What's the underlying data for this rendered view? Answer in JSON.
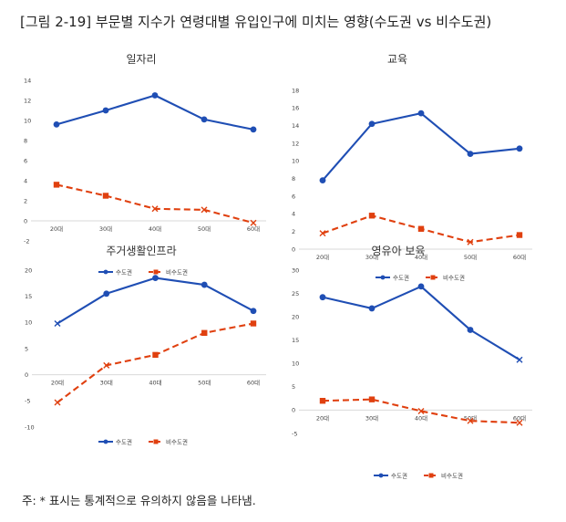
{
  "figure": {
    "title": "[그림 2-19] 부문별 지수가 연령대별 유입인구에 미치는 영향(수도권 vs 비수도권)",
    "footnote": "주: * 표시는 통계적으로 유의하지 않음을 나타냄."
  },
  "colors": {
    "capital": "#1f4eb4",
    "non_capital": "#e0400f"
  },
  "chart_data": [
    {
      "type": "line",
      "title": "일자리",
      "categories": [
        "20대",
        "30대",
        "40대",
        "50대",
        "60대"
      ],
      "ylim": [
        -2,
        14
      ],
      "yticks": [
        -2,
        0,
        2,
        4,
        6,
        8,
        10,
        12,
        14
      ],
      "series": [
        {
          "name": "수도권",
          "values": [
            9.6,
            11.0,
            12.5,
            10.1,
            9.1
          ],
          "not_significant": [
            false,
            false,
            false,
            false,
            false
          ]
        },
        {
          "name": "비수도권",
          "values": [
            3.6,
            2.5,
            1.2,
            1.1,
            -0.2
          ],
          "not_significant": [
            false,
            false,
            true,
            true,
            true
          ]
        }
      ],
      "legend": "bottom"
    },
    {
      "type": "line",
      "title": "교육",
      "categories": [
        "20대",
        "30대",
        "40대",
        "50대",
        "60대"
      ],
      "ylim": [
        0,
        18
      ],
      "yticks": [
        0,
        2,
        4,
        6,
        8,
        10,
        12,
        14,
        16,
        18
      ],
      "series": [
        {
          "name": "수도권",
          "values": [
            7.8,
            14.2,
            15.4,
            10.8,
            11.4
          ],
          "not_significant": [
            false,
            false,
            false,
            false,
            false
          ]
        },
        {
          "name": "비수도권",
          "values": [
            1.8,
            3.8,
            2.3,
            0.8,
            1.6
          ],
          "not_significant": [
            true,
            false,
            false,
            true,
            false
          ]
        }
      ],
      "legend": "bottom"
    },
    {
      "type": "line",
      "title": "주거생활인프라",
      "categories": [
        "20대",
        "30대",
        "40대",
        "50대",
        "60대"
      ],
      "ylim": [
        -10,
        20
      ],
      "yticks": [
        -10,
        -5,
        0,
        5,
        10,
        15,
        20
      ],
      "series": [
        {
          "name": "수도권",
          "values": [
            9.8,
            15.5,
            18.5,
            17.2,
            12.2
          ],
          "not_significant": [
            true,
            false,
            false,
            false,
            false
          ]
        },
        {
          "name": "비수도권",
          "values": [
            -5.3,
            1.8,
            3.8,
            8.0,
            9.8
          ],
          "not_significant": [
            true,
            true,
            false,
            false,
            false
          ]
        }
      ],
      "legend": "bottom"
    },
    {
      "type": "line",
      "title": "영유아 보육",
      "categories": [
        "20대",
        "30대",
        "40대",
        "50대",
        "60대"
      ],
      "ylim": [
        -5,
        30
      ],
      "yticks": [
        -5,
        0,
        5,
        10,
        15,
        20,
        25,
        30
      ],
      "series": [
        {
          "name": "수도권",
          "values": [
            24.2,
            21.8,
            26.5,
            17.2,
            10.8
          ],
          "not_significant": [
            false,
            false,
            false,
            false,
            true
          ]
        },
        {
          "name": "비수도권",
          "values": [
            2.0,
            2.3,
            -0.2,
            -2.3,
            -2.7
          ],
          "not_significant": [
            false,
            false,
            true,
            true,
            true
          ]
        }
      ],
      "legend": "bottom"
    }
  ]
}
